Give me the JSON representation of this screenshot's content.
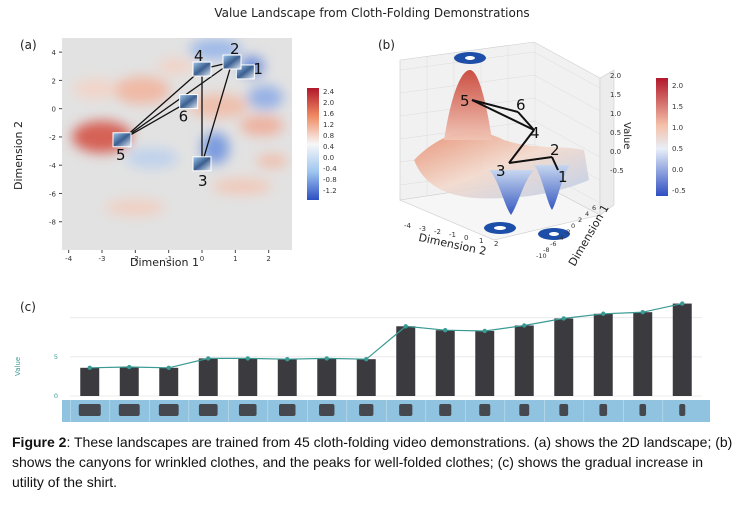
{
  "title": "Value Landscape from Cloth-Folding Demonstrations",
  "panels": {
    "a": {
      "label": "(a)",
      "xlabel": "Dimension 1",
      "ylabel": "Dimension 2",
      "xticks": [
        "-4",
        "-3",
        "-2",
        "-1",
        "0",
        "1",
        "2"
      ],
      "yticks": [
        "4",
        "2",
        "0",
        "-2",
        "-4",
        "-6",
        "-8"
      ],
      "colorbar_ticks": [
        "2.4",
        "2.0",
        "1.6",
        "1.2",
        "0.8",
        "0.4",
        "0.0",
        "-0.4",
        "-0.8",
        "-1.2"
      ],
      "points": [
        {
          "label": "1",
          "x": 1.3,
          "y": 2.6
        },
        {
          "label": "2",
          "x": 0.9,
          "y": 3.3
        },
        {
          "label": "3",
          "x": 0.0,
          "y": -3.9
        },
        {
          "label": "4",
          "x": 0.0,
          "y": 2.8
        },
        {
          "label": "5",
          "x": -2.4,
          "y": -2.2
        },
        {
          "label": "6",
          "x": -0.4,
          "y": 0.5
        }
      ]
    },
    "b": {
      "label": "(b)",
      "xlabel": "Dimension 2",
      "ylabel": "Dimension 1",
      "zlabel": "Value",
      "xticks": [
        "-4",
        "-3",
        "-2",
        "-1",
        "0",
        "1",
        "2"
      ],
      "yticks": [
        "-10",
        "-8",
        "-6",
        "-4",
        "-2",
        "0",
        "2",
        "4",
        "6"
      ],
      "zticks": [
        "2.0",
        "1.5",
        "1.0",
        "0.5",
        "0.0",
        "-0.5"
      ],
      "colorbar_ticks": [
        "2.0",
        "1.5",
        "1.0",
        "0.5",
        "0.0",
        "-0.5"
      ],
      "point_labels": [
        "5",
        "6",
        "4",
        "2",
        "3",
        "1"
      ]
    },
    "c": {
      "label": "(c)",
      "ylabel": "Value",
      "yticks": [
        "5",
        "0"
      ],
      "chart_data": {
        "type": "bar",
        "ylabel": "Value",
        "values": [
          3.6,
          3.7,
          3.6,
          4.8,
          4.8,
          4.7,
          4.8,
          4.7,
          8.9,
          8.4,
          8.3,
          9.0,
          9.9,
          10.5,
          10.7,
          11.8
        ],
        "ylim": [
          0,
          12
        ]
      }
    }
  },
  "caption": {
    "lead": "Figure 2",
    "text": ": These landscapes are trained from 45 cloth-folding video demonstrations. (a) shows the 2D landscape; (b) shows the canyons for wrinkled clothes, and the peaks for well-folded clothes; (c) shows the gradual increase in utility of the shirt."
  },
  "colors": {
    "bar": "#3a3a3f",
    "line": "#3a9a94",
    "high": "#c03030",
    "low": "#3b5fc9",
    "neutral": "#e8e8e8"
  }
}
